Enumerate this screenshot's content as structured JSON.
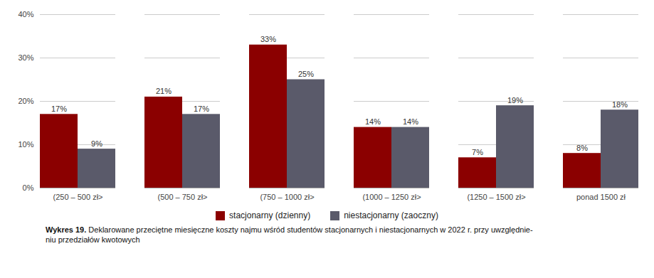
{
  "chart_data": {
    "type": "bar",
    "title": "Wykres 19.",
    "subtitle": "Deklarowane przeciętne miesięczne koszty najmu wśród studentów stacjonarnych i niestacjonarnych w 2022 r. przy uwzględnie-\nniu przedziałów kwotowych",
    "categories": [
      "(250 – 500 zł>",
      "(500 – 750 zł>",
      "(750 – 1000 zł>",
      "(1000 – 1250 zł>",
      "(1250 – 1500 zł>",
      "ponad 1500 zł"
    ],
    "series": [
      {
        "name": "stacjonarny (dzienny)",
        "color": "#8B0000",
        "values": [
          17,
          21,
          33,
          14,
          7,
          8
        ],
        "value_labels": [
          "17%",
          "21%",
          "33%",
          "14%",
          "7%",
          "8%"
        ]
      },
      {
        "name": "niestacjonarny (zaoczny)",
        "color": "#5a5a6a",
        "values": [
          9,
          17,
          25,
          14,
          19,
          18
        ],
        "value_labels": [
          "9%",
          "17%",
          "25%",
          "14%",
          "19%",
          "18%"
        ]
      }
    ],
    "ylim": [
      0,
      40
    ],
    "yticks": [
      {
        "value": 0,
        "label": "0%"
      },
      {
        "value": 10,
        "label": "10%"
      },
      {
        "value": 20,
        "label": "20%"
      },
      {
        "value": 30,
        "label": "30%"
      },
      {
        "value": 40,
        "label": "40%"
      }
    ],
    "grid": true,
    "legend": "bottom",
    "data_labels": true
  }
}
